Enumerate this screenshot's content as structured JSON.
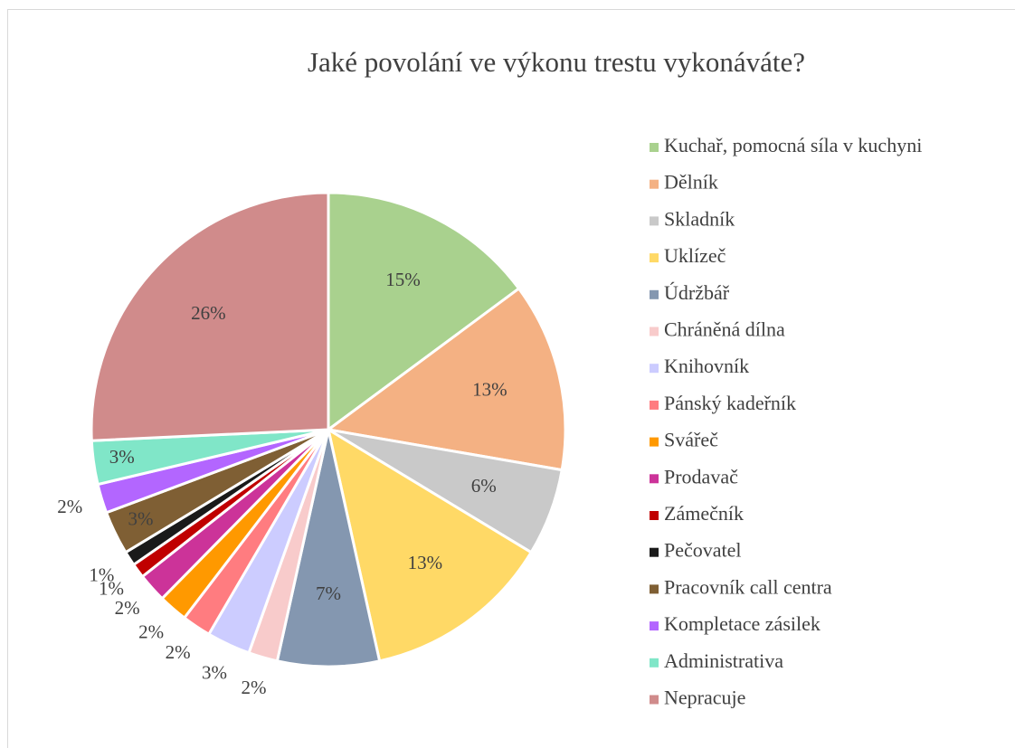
{
  "chart_data": {
    "type": "pie",
    "title": "Jaké povolání ve výkonu trestu vykonáváte?",
    "categories": [
      "Kuchař, pomocná síla v kuchyni",
      "Dělník",
      "Skladník",
      "Uklízeč",
      "Údržbář",
      "Chráněná dílna",
      "Knihovník",
      "Pánský kadeřník",
      "Svářeč",
      "Prodavač",
      "Zámečník",
      "Pečovatel",
      "Pracovník call centra",
      "Kompletace zásilek",
      "Administrativa",
      "Nepracuje"
    ],
    "values": [
      15,
      13,
      6,
      13,
      7,
      2,
      3,
      2,
      2,
      2,
      1,
      1,
      3,
      2,
      3,
      26
    ],
    "value_labels": [
      "15%",
      "13%",
      "6%",
      "13%",
      "7%",
      "2%",
      "3%",
      "2%",
      "2%",
      "2%",
      "1%",
      "1%",
      "3%",
      "2%",
      "3%",
      "26%"
    ],
    "colors": [
      "#a9d18e",
      "#f4b183",
      "#c9c9c9",
      "#ffd966",
      "#8497b0",
      "#f8cbcb",
      "#ccccff",
      "#ff7c80",
      "#ff9900",
      "#cc3399",
      "#c00000",
      "#1a1a1a",
      "#7f5f34",
      "#b366ff",
      "#80e6c8",
      "#d08b8b"
    ],
    "legend": "right"
  }
}
